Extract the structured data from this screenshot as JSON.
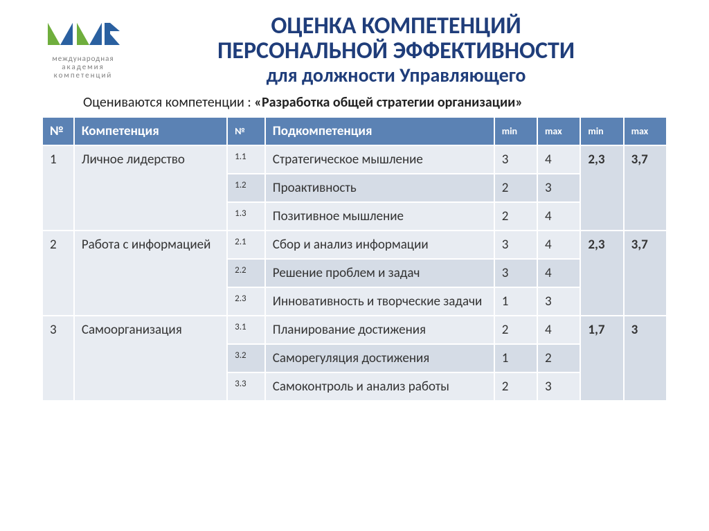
{
  "logo": {
    "line1": "международная",
    "line2": "академия",
    "line3": "компетенций",
    "colors": {
      "green": "#6fae3d",
      "blue": "#2a60a0"
    }
  },
  "title": {
    "l1": "ОЦЕНКА КОМПЕТЕНЦИЙ",
    "l2": "ПЕРСОНАЛЬНОЙ ЭФФЕКТИВНОСТИ",
    "l3": "для должности Управляющего"
  },
  "intro": {
    "prefix": "Оцениваются компетенции : ",
    "bold": "«Разработка общей стратегии организации»"
  },
  "headers": {
    "num": "№",
    "comp": "Компетенция",
    "snum": "№",
    "sub": "Подкомпетенция",
    "min": "min",
    "max": "max",
    "amin": "min",
    "amax": "max"
  },
  "groups": [
    {
      "num": "1",
      "name": "Личное лидерство",
      "agg_min": "2,3",
      "agg_max": "3,7",
      "subs": [
        {
          "n": "1.1",
          "name": "Стратегическое мышление",
          "min": "3",
          "max": "4"
        },
        {
          "n": "1.2",
          "name": "Проактивность",
          "min": "2",
          "max": "3"
        },
        {
          "n": "1.3",
          "name": "Позитивное мышление",
          "min": "2",
          "max": "4"
        }
      ]
    },
    {
      "num": "2",
      "name": "Работа с информацией",
      "agg_min": "2,3",
      "agg_max": "3,7",
      "subs": [
        {
          "n": "2.1",
          "name": "Сбор и анализ информации",
          "min": "3",
          "max": "4"
        },
        {
          "n": "2.2",
          "name": "Решение проблем и задач",
          "min": "3",
          "max": "4"
        },
        {
          "n": "2.3",
          "name": "Инновативность и творческие задачи",
          "min": "1",
          "max": "3"
        }
      ]
    },
    {
      "num": "3",
      "name": "Самоорганизация",
      "agg_min": "1,7",
      "agg_max": "3",
      "subs": [
        {
          "n": "3.1",
          "name": "Планирование достижения",
          "min": "2",
          "max": "4"
        },
        {
          "n": "3.2",
          "name": "Саморегуляция достижения",
          "min": "1",
          "max": "2"
        },
        {
          "n": "3.3",
          "name": "Самоконтроль и анализ работы",
          "min": "2",
          "max": "3"
        }
      ]
    }
  ],
  "style": {
    "header_bg": "#5b82b4",
    "row_light": "#e8ecf2",
    "row_dark": "#d5dce6",
    "title_color": "#1f3d7a"
  }
}
